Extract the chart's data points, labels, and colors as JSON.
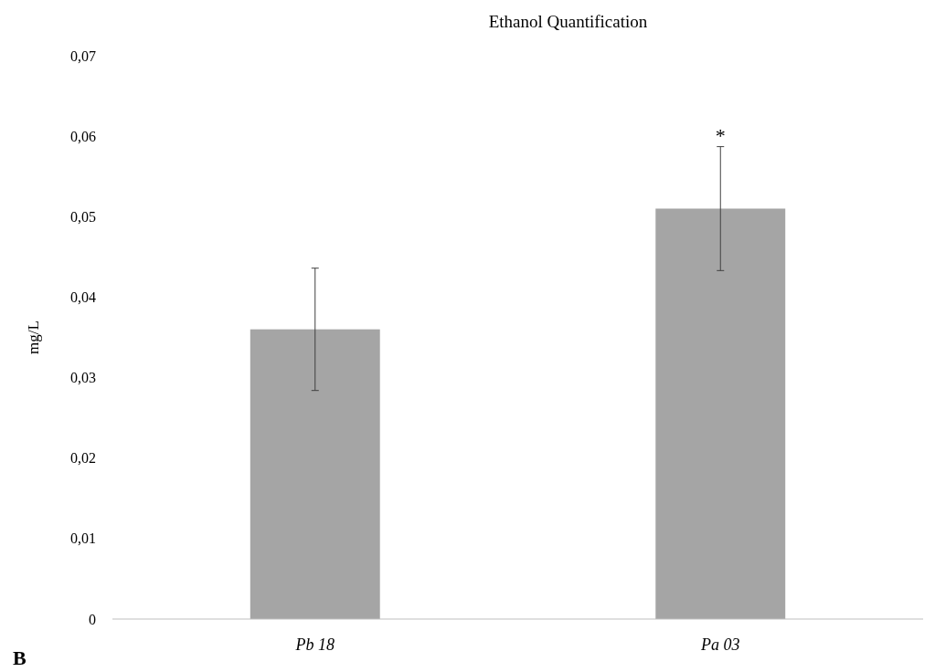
{
  "chart_data": {
    "type": "bar",
    "title": "Ethanol Quantification",
    "ylabel": "mg/L",
    "categories": [
      "Pb 18",
      "Pa 03"
    ],
    "values": [
      0.036,
      0.051
    ],
    "errors": [
      0.0076,
      0.0077
    ],
    "color": "#a5a5a5",
    "ylim": [
      0,
      0.07
    ],
    "yticks": [
      0,
      {
        "value": 0.01,
        "label": "0,01"
      },
      {
        "value": 0.02,
        "label": "0,02"
      },
      {
        "value": 0.03,
        "label": "0,03"
      },
      {
        "value": 0.04,
        "label": "0,04"
      },
      {
        "value": 0.05,
        "label": "0,05"
      },
      {
        "value": 0.06,
        "label": "0,06"
      },
      {
        "value": 0.07,
        "label": "0,07"
      }
    ],
    "annotations": [
      {
        "text": "*",
        "x": "Pa 03",
        "y": 0.0588
      },
      "B"
    ]
  }
}
